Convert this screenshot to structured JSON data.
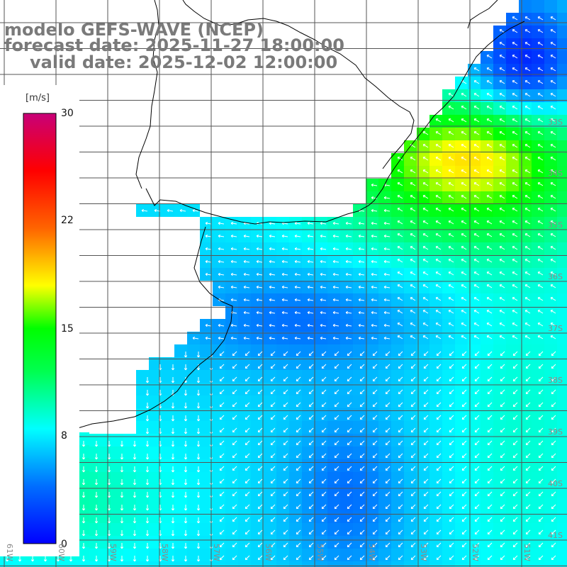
{
  "title": {
    "line1": "modelo GEFS-WAVE (NCEP)",
    "line2": "forecast date: 2025-11-27 18:00:00",
    "line3": "valid date: 2025-12-02 12:00:00"
  },
  "colorbar": {
    "unit": "[m/s]",
    "ticks": [
      "30",
      "22",
      "15",
      "8",
      "0"
    ],
    "min": 0,
    "max": 30
  },
  "lat_labels": [
    "33S",
    "34S",
    "35S",
    "36S",
    "37S",
    "38S",
    "39S",
    "40S",
    "41S"
  ],
  "lon_labels": [
    "61W",
    "60W",
    "59W",
    "58W",
    "57W",
    "56W",
    "55W",
    "54W",
    "53W",
    "52W",
    "51W"
  ],
  "colors": {
    "land": "#ffffff",
    "coastline": "#000000",
    "grid": "#555555",
    "arrows": "#ffffff",
    "title_text": "#7a7a7a"
  }
}
